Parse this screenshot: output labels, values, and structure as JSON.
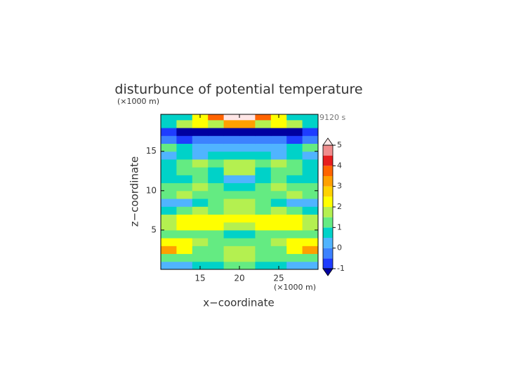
{
  "chart_data": {
    "type": "contour",
    "title": "disturbunce of potential temperature",
    "x_label": "x−coordinate",
    "y_label": "z−coordinate",
    "x_unit_label": "(×1000 m)",
    "y_unit_label": "(×1000 m)",
    "time_label": "9120 s",
    "x": [
      11,
      13,
      15,
      17,
      19,
      21,
      23,
      25,
      27,
      29
    ],
    "y": [
      0.5,
      1.5,
      2.5,
      3.5,
      4.5,
      5.5,
      6.5,
      7.5,
      8.5,
      9.5,
      10.5,
      11.5,
      12.5,
      13.5,
      14.5,
      15.5,
      16.5,
      17.5,
      18.5,
      19.5
    ],
    "z": [
      [
        0.2,
        0.3,
        0.6,
        0.8,
        1.2,
        1.2,
        0.8,
        0.6,
        0.3,
        0.2
      ],
      [
        1.3,
        1.1,
        1.2,
        1.4,
        1.6,
        1.6,
        1.4,
        1.2,
        1.1,
        1.3
      ],
      [
        3.2,
        2.2,
        1.4,
        1.2,
        1.5,
        1.5,
        1.2,
        1.4,
        2.2,
        3.2
      ],
      [
        2.4,
        2.1,
        1.8,
        1.4,
        1.3,
        1.3,
        1.4,
        1.8,
        2.1,
        2.4
      ],
      [
        1.2,
        1.4,
        1.3,
        1.0,
        0.8,
        0.8,
        1.0,
        1.3,
        1.4,
        1.2
      ],
      [
        1.8,
        2.2,
        2.4,
        2.1,
        1.6,
        1.6,
        2.1,
        2.4,
        2.2,
        1.8
      ],
      [
        1.6,
        2.0,
        2.2,
        2.3,
        2.4,
        2.4,
        2.3,
        2.2,
        2.0,
        1.6
      ],
      [
        0.8,
        1.2,
        1.6,
        1.3,
        1.9,
        1.9,
        1.3,
        1.6,
        1.2,
        0.8
      ],
      [
        0.2,
        0.4,
        0.8,
        1.1,
        1.6,
        1.6,
        1.1,
        0.8,
        0.4,
        0.2
      ],
      [
        1.2,
        1.6,
        1.4,
        1.0,
        1.4,
        1.4,
        1.0,
        1.4,
        1.6,
        1.2
      ],
      [
        1.0,
        1.4,
        1.6,
        1.2,
        0.9,
        0.9,
        1.2,
        1.6,
        1.4,
        1.0
      ],
      [
        0.6,
        0.8,
        1.0,
        0.7,
        0.4,
        0.4,
        0.7,
        1.0,
        0.8,
        0.6
      ],
      [
        0.9,
        1.2,
        1.1,
        0.8,
        1.6,
        1.6,
        0.8,
        1.1,
        1.2,
        0.9
      ],
      [
        0.6,
        1.2,
        1.6,
        1.4,
        1.8,
        1.8,
        1.4,
        1.6,
        1.2,
        0.6
      ],
      [
        0.2,
        0.6,
        0.4,
        0.7,
        0.9,
        0.9,
        0.7,
        0.4,
        0.6,
        0.2
      ],
      [
        1.0,
        0.5,
        0.3,
        0.2,
        0.2,
        0.2,
        0.2,
        0.3,
        0.5,
        1.0
      ],
      [
        -0.4,
        -0.6,
        -0.5,
        -0.4,
        -0.3,
        -0.3,
        -0.4,
        -0.5,
        -0.6,
        -0.4
      ],
      [
        -1.0,
        -1.2,
        -1.3,
        -1.3,
        -1.2,
        -1.2,
        -1.3,
        -1.3,
        -1.2,
        -1.0
      ],
      [
        0.8,
        1.8,
        2.3,
        1.6,
        3.2,
        3.2,
        1.6,
        2.3,
        1.8,
        0.8
      ],
      [
        0.6,
        0.8,
        2.0,
        3.6,
        5.4,
        5.4,
        3.6,
        2.0,
        0.8,
        0.6
      ]
    ],
    "xlim": [
      10,
      30
    ],
    "ylim": [
      0,
      19.7
    ],
    "xticks": [
      15,
      20,
      25
    ],
    "yticks": [
      5,
      10,
      15
    ],
    "levels": [
      -1,
      -0.5,
      0,
      0.5,
      1,
      1.5,
      2,
      2.5,
      3,
      3.5,
      4,
      4.5,
      5
    ],
    "colors": [
      "#1e3cff",
      "#3c82ff",
      "#50b4ff",
      "#00d2c8",
      "#64eb82",
      "#b4f050",
      "#ffff00",
      "#ffd200",
      "#ffa000",
      "#ff6400",
      "#e61e1e",
      "#f08c8c"
    ],
    "under_color": "#0000a0",
    "over_color": "#ffe6e6",
    "colorbar_ticks": [
      -1,
      0,
      1,
      2,
      3,
      4,
      5
    ]
  }
}
